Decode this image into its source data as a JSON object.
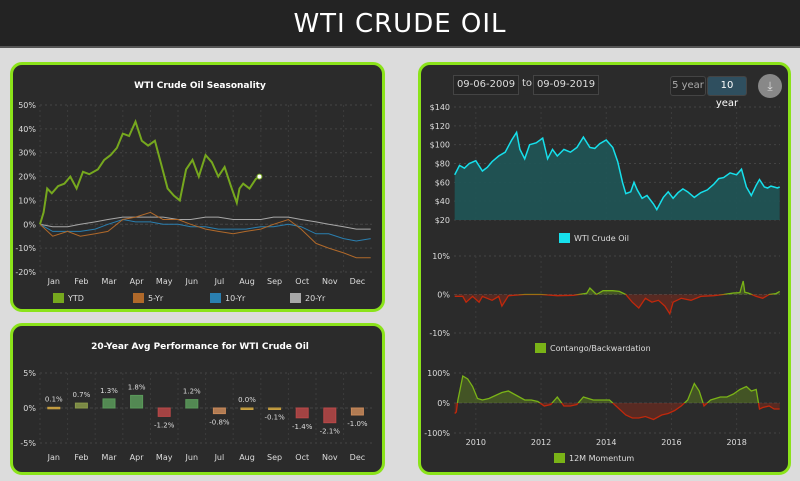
{
  "header": {
    "title": "WTI CRUDE OIL"
  },
  "controls": {
    "from_date": "09-06-2009",
    "to_label": "to",
    "to_date": "09-09-2019",
    "range_5y": "5 year",
    "range_10y": "10 year",
    "selected_range": "10 year",
    "download_icon": "download-icon"
  },
  "colors": {
    "border": "#8be31a",
    "ytd": "#76a81e",
    "five": "#b0692a",
    "ten": "#2a7fb0",
    "twenty": "#a8a8a8",
    "price": "#16e0ec",
    "price_fill": "#1f5556",
    "pos": "#7ab317",
    "neg": "#c0280c"
  },
  "chart_data": [
    {
      "type": "line",
      "title": "WTI Crude Oil Seasonality",
      "ylim": [
        -20,
        50
      ],
      "yticks": [
        "50%",
        "40%",
        "30%",
        "20%",
        "10%",
        "0%",
        "-10%",
        "-20%"
      ],
      "ytick_values": [
        50,
        40,
        30,
        20,
        10,
        0,
        -10,
        -20
      ],
      "categories": [
        "Jan",
        "Feb",
        "Mar",
        "Apr",
        "May",
        "Jun",
        "Jul",
        "Aug",
        "Sep",
        "Oct",
        "Nov",
        "Dec"
      ],
      "grid": true,
      "legend": "bottom",
      "series": [
        {
          "name": "YTD",
          "x": [
            "01-01",
            "01-05",
            "01-09",
            "01-14",
            "01-21",
            "01-28",
            "02-04",
            "02-11",
            "02-18",
            "02-25",
            "03-04",
            "03-11",
            "03-18",
            "03-25",
            "04-01",
            "04-08",
            "04-15",
            "04-22",
            "04-29",
            "05-06",
            "05-13",
            "05-20",
            "05-27",
            "06-03",
            "06-10",
            "06-17",
            "06-24",
            "07-01",
            "07-08",
            "07-15",
            "07-22",
            "07-29",
            "08-05",
            "08-08",
            "08-12",
            "08-19",
            "08-26",
            "08-30"
          ],
          "values": [
            0,
            5,
            15,
            13,
            16,
            17,
            20,
            15,
            22,
            21,
            23,
            27,
            29,
            32,
            38,
            37,
            43,
            35,
            33,
            35,
            25,
            15,
            12,
            10,
            23,
            27,
            20,
            29,
            26,
            20,
            24,
            16,
            9,
            15,
            17,
            15,
            19,
            20
          ]
        },
        {
          "name": "5-Yr",
          "x": [
            "01-01",
            "01-15",
            "02-01",
            "02-15",
            "03-01",
            "03-15",
            "04-01",
            "04-15",
            "05-01",
            "05-15",
            "06-01",
            "06-15",
            "07-01",
            "07-15",
            "08-01",
            "08-15",
            "09-01",
            "09-15",
            "10-01",
            "10-15",
            "11-01",
            "11-15",
            "12-01",
            "12-15",
            "12-31"
          ],
          "values": [
            0,
            -5,
            -3,
            -5,
            -4,
            -3,
            2,
            3,
            5,
            2,
            2,
            0,
            -2,
            -3,
            -4,
            -3,
            -2,
            0,
            2,
            -2,
            -8,
            -10,
            -12,
            -14,
            -14
          ]
        },
        {
          "name": "10-Yr",
          "x": [
            "01-01",
            "01-15",
            "02-01",
            "02-15",
            "03-01",
            "03-15",
            "04-01",
            "04-15",
            "05-01",
            "05-15",
            "06-01",
            "06-15",
            "07-01",
            "07-15",
            "08-01",
            "08-15",
            "09-01",
            "09-15",
            "10-01",
            "10-15",
            "11-01",
            "11-15",
            "12-01",
            "12-15",
            "12-31"
          ],
          "values": [
            0,
            -3,
            -3,
            -3,
            -2,
            0,
            2,
            1,
            1,
            0,
            0,
            -1,
            -1,
            -2,
            -2,
            -2,
            -1,
            -1,
            0,
            -1,
            -4,
            -4,
            -6,
            -7,
            -6
          ]
        },
        {
          "name": "20-Yr",
          "x": [
            "01-01",
            "01-15",
            "02-01",
            "02-15",
            "03-01",
            "03-15",
            "04-01",
            "04-15",
            "05-01",
            "05-15",
            "06-01",
            "06-15",
            "07-01",
            "07-15",
            "08-01",
            "08-15",
            "09-01",
            "09-15",
            "10-01",
            "10-15",
            "11-01",
            "11-15",
            "12-01",
            "12-15",
            "12-31"
          ],
          "values": [
            0,
            -1,
            -1,
            0,
            1,
            2,
            3,
            3,
            3,
            3,
            2,
            2,
            3,
            3,
            2,
            2,
            2,
            3,
            3,
            2,
            1,
            0,
            -1,
            -2,
            -2
          ]
        }
      ]
    },
    {
      "type": "bar",
      "title": "20-Year Avg Performance for WTI Crude Oil",
      "ylim": [
        -5,
        5
      ],
      "yticks": [
        "5%",
        "0%",
        "-5%"
      ],
      "ytick_values": [
        5,
        0,
        -5
      ],
      "categories": [
        "Jan",
        "Feb",
        "Mar",
        "Apr",
        "May",
        "Jun",
        "Jul",
        "Aug",
        "Sep",
        "Oct",
        "Nov",
        "Dec"
      ],
      "values": [
        0.1,
        0.7,
        1.3,
        1.8,
        -1.2,
        1.2,
        -0.8,
        0.0,
        -0.1,
        -1.4,
        -2.1,
        -1.0
      ],
      "labels": [
        "0.1%",
        "0.7%",
        "1.3%",
        "1.8%",
        "-1.2%",
        "1.2%",
        "-0.8%",
        "0.0%",
        "-0.1%",
        "-1.4%",
        "-2.1%",
        "-1.0%"
      ]
    },
    {
      "type": "area",
      "ylim": [
        20,
        140
      ],
      "yticks": [
        "$140",
        "$120",
        "$100",
        "$80",
        "$60",
        "$40",
        "$20"
      ],
      "ytick_values": [
        140,
        120,
        100,
        80,
        60,
        40,
        20
      ],
      "legend": "bottom",
      "grid": true,
      "series": [
        {
          "name": "WTI Crude Oil",
          "x": [
            2009.35,
            2009.5,
            2009.65,
            2009.8,
            2010.0,
            2010.2,
            2010.35,
            2010.5,
            2010.7,
            2010.9,
            2011.1,
            2011.25,
            2011.35,
            2011.5,
            2011.65,
            2011.85,
            2012.05,
            2012.2,
            2012.35,
            2012.5,
            2012.7,
            2012.9,
            2013.1,
            2013.3,
            2013.5,
            2013.65,
            2013.8,
            2014.0,
            2014.2,
            2014.35,
            2014.5,
            2014.6,
            2014.75,
            2014.85,
            2014.95,
            2015.1,
            2015.25,
            2015.45,
            2015.55,
            2015.75,
            2015.9,
            2016.05,
            2016.2,
            2016.35,
            2016.5,
            2016.7,
            2016.9,
            2017.1,
            2017.3,
            2017.45,
            2017.6,
            2017.8,
            2018.0,
            2018.15,
            2018.3,
            2018.45,
            2018.6,
            2018.7,
            2018.85,
            2018.95,
            2019.05,
            2019.15,
            2019.25,
            2019.32
          ],
          "values": [
            68,
            78,
            75,
            80,
            83,
            72,
            76,
            82,
            88,
            92,
            105,
            113,
            95,
            85,
            100,
            102,
            107,
            85,
            95,
            88,
            95,
            92,
            97,
            108,
            97,
            96,
            101,
            105,
            97,
            82,
            60,
            48,
            50,
            60,
            52,
            43,
            46,
            37,
            31,
            44,
            50,
            43,
            49,
            53,
            50,
            44,
            49,
            52,
            58,
            64,
            65,
            70,
            68,
            74,
            55,
            46,
            57,
            63,
            55,
            54,
            56,
            55,
            54,
            55
          ]
        }
      ]
    },
    {
      "type": "area",
      "ylim": [
        -10,
        10
      ],
      "yticks": [
        "10%",
        "0%",
        "-10%"
      ],
      "ytick_values": [
        10,
        0,
        -10
      ],
      "legend": "bottom",
      "series": [
        {
          "name": "Contango/Backwardation",
          "x": [
            2009.35,
            2009.6,
            2009.7,
            2009.9,
            2010.1,
            2010.2,
            2010.5,
            2010.7,
            2010.8,
            2011.0,
            2011.5,
            2012.0,
            2012.5,
            2013.0,
            2013.4,
            2013.5,
            2013.7,
            2013.9,
            2014.2,
            2014.4,
            2014.6,
            2014.8,
            2015.0,
            2015.2,
            2015.4,
            2015.6,
            2015.8,
            2015.95,
            2016.05,
            2016.3,
            2016.6,
            2016.9,
            2017.3,
            2017.6,
            2017.9,
            2018.1,
            2018.2,
            2018.25,
            2018.35,
            2018.6,
            2018.8,
            2019.0,
            2019.2,
            2019.32
          ],
          "values": [
            -0.5,
            -0.5,
            -2,
            -0.5,
            -2,
            -0.5,
            -1.5,
            -0.5,
            -3,
            -0.3,
            0,
            0,
            -0.3,
            -0.2,
            0.3,
            1.7,
            0,
            1,
            1,
            0.8,
            0,
            -2,
            -3.5,
            -1,
            -2,
            -1.5,
            -3,
            -5,
            -2,
            -1,
            -1.5,
            -0.5,
            -0.3,
            0,
            0.4,
            0.5,
            3.5,
            0.6,
            0.4,
            -0.5,
            -1,
            0,
            0.2,
            0.8
          ]
        }
      ]
    },
    {
      "type": "area",
      "ylim": [
        -100,
        100
      ],
      "yticks": [
        "100%",
        "0%",
        "-100%"
      ],
      "ytick_values": [
        100,
        0,
        -100
      ],
      "xticks": [
        "2010",
        "2012",
        "2014",
        "2016",
        "2018"
      ],
      "xtick_values": [
        2010,
        2012,
        2014,
        2016,
        2018
      ],
      "legend": "bottom",
      "series": [
        {
          "name": "12M Momentum",
          "x": [
            2009.35,
            2009.4,
            2009.45,
            2009.6,
            2009.75,
            2009.9,
            2010.05,
            2010.2,
            2010.4,
            2010.6,
            2010.8,
            2011.0,
            2011.25,
            2011.5,
            2011.7,
            2011.9,
            2012.1,
            2012.3,
            2012.5,
            2012.7,
            2012.9,
            2013.1,
            2013.3,
            2013.6,
            2013.9,
            2014.1,
            2014.4,
            2014.6,
            2014.8,
            2015.0,
            2015.2,
            2015.45,
            2015.7,
            2015.9,
            2016.1,
            2016.3,
            2016.5,
            2016.7,
            2016.85,
            2017.0,
            2017.2,
            2017.5,
            2017.7,
            2017.9,
            2018.1,
            2018.3,
            2018.45,
            2018.6,
            2018.7,
            2018.8,
            2019.0,
            2019.15,
            2019.32
          ],
          "values": [
            -35,
            -30,
            10,
            90,
            80,
            55,
            15,
            10,
            15,
            25,
            35,
            40,
            25,
            10,
            10,
            5,
            -10,
            -5,
            20,
            -10,
            -10,
            -5,
            20,
            10,
            10,
            10,
            -20,
            -40,
            -50,
            -50,
            -45,
            -55,
            -40,
            -35,
            -25,
            -10,
            10,
            65,
            40,
            -10,
            10,
            20,
            20,
            30,
            45,
            55,
            40,
            45,
            -20,
            -15,
            -10,
            -20,
            -20
          ]
        }
      ]
    }
  ]
}
